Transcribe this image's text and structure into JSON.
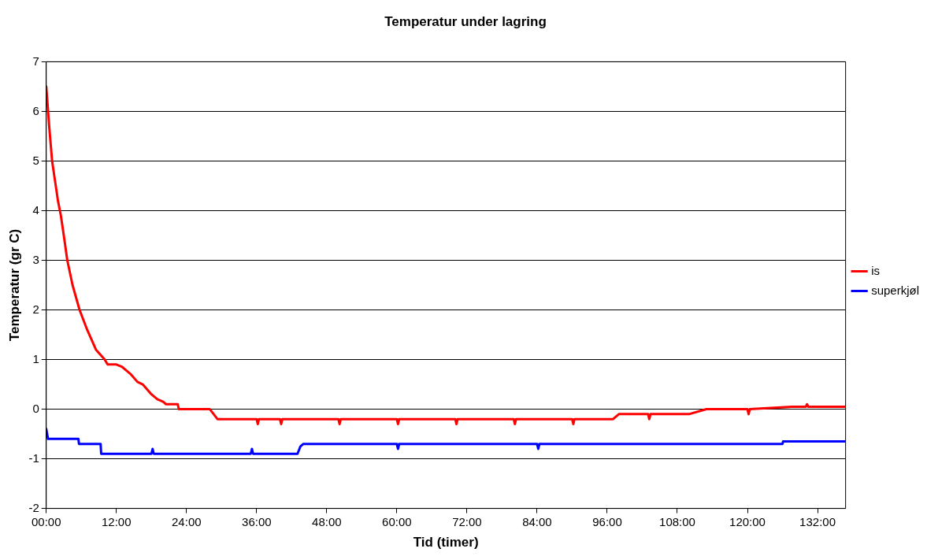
{
  "chart_data": {
    "type": "line",
    "title": "Temperatur under lagring",
    "xlabel": "Tid (timer)",
    "ylabel": "Temperatur (gr C)",
    "xlim": [
      0,
      136.8
    ],
    "xticks": [
      {
        "value": 0,
        "label": "00:00"
      },
      {
        "value": 12,
        "label": "12:00"
      },
      {
        "value": 24,
        "label": "24:00"
      },
      {
        "value": 36,
        "label": "36:00"
      },
      {
        "value": 48,
        "label": "48:00"
      },
      {
        "value": 60,
        "label": "60:00"
      },
      {
        "value": 72,
        "label": "72:00"
      },
      {
        "value": 84,
        "label": "84:00"
      },
      {
        "value": 96,
        "label": "96:00"
      },
      {
        "value": 108,
        "label": "108:00"
      },
      {
        "value": 120,
        "label": "120:00"
      },
      {
        "value": 132,
        "label": "132:00"
      }
    ],
    "ylim": [
      -2,
      7
    ],
    "yticks": [
      -2,
      -1,
      0,
      1,
      2,
      3,
      4,
      5,
      6,
      7
    ],
    "grid": "y",
    "legend": "right",
    "marker": "none",
    "line_style": "solid",
    "series": [
      {
        "name": "is",
        "color": "#ff0000",
        "x": [
          0,
          0.5,
          1,
          1.5,
          2,
          2.5,
          3,
          3.6,
          4.5,
          5.7,
          7,
          8.5,
          10,
          10.5,
          12,
          13,
          13.5,
          14.5,
          15.6,
          16.5,
          18,
          19,
          20,
          20.5,
          22.5,
          22.7,
          28,
          29.3,
          36,
          36.2,
          36.4,
          40,
          40.2,
          40.4,
          50,
          50.2,
          50.4,
          60,
          60.2,
          60.4,
          70,
          70.2,
          70.4,
          80,
          80.2,
          80.4,
          90,
          90.2,
          90.4,
          97,
          98,
          103,
          103.2,
          103.4,
          110,
          113,
          120,
          120.2,
          120.4,
          127.6,
          130,
          130.2,
          130.4,
          136.8
        ],
        "values": [
          6.5,
          5.7,
          5.0,
          4.6,
          4.2,
          3.9,
          3.5,
          3.0,
          2.5,
          2.0,
          1.6,
          1.2,
          1.0,
          0.9,
          0.9,
          0.85,
          0.8,
          0.7,
          0.55,
          0.5,
          0.3,
          0.2,
          0.15,
          0.1,
          0.1,
          0,
          0,
          -0.2,
          -0.2,
          -0.3,
          -0.2,
          -0.2,
          -0.3,
          -0.2,
          -0.2,
          -0.3,
          -0.2,
          -0.2,
          -0.3,
          -0.2,
          -0.2,
          -0.3,
          -0.2,
          -0.2,
          -0.3,
          -0.2,
          -0.2,
          -0.3,
          -0.2,
          -0.2,
          -0.1,
          -0.1,
          -0.2,
          -0.1,
          -0.1,
          0,
          0,
          -0.1,
          0,
          0.05,
          0.05,
          0.1,
          0.05,
          0.05
        ]
      },
      {
        "name": "superkjøl",
        "color": "#0000ff",
        "x": [
          0,
          0.3,
          5.5,
          5.6,
          9.3,
          9.4,
          18,
          18.2,
          18.4,
          35,
          35.2,
          35.4,
          43,
          43.5,
          44,
          60,
          60.2,
          60.4,
          84,
          84.2,
          84.4,
          126,
          126.1,
          136.8
        ],
        "values": [
          -0.4,
          -0.6,
          -0.6,
          -0.7,
          -0.7,
          -0.9,
          -0.9,
          -0.8,
          -0.9,
          -0.9,
          -0.8,
          -0.9,
          -0.9,
          -0.75,
          -0.7,
          -0.7,
          -0.8,
          -0.7,
          -0.7,
          -0.8,
          -0.7,
          -0.7,
          -0.65,
          -0.65
        ]
      }
    ]
  }
}
